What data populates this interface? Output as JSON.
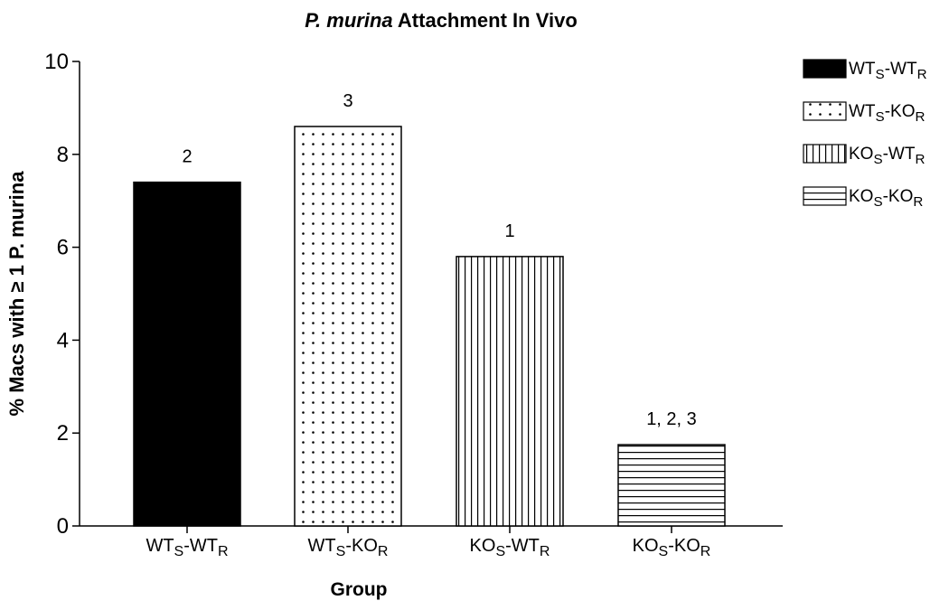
{
  "chart_data": {
    "type": "bar",
    "title": {
      "species": "P. murina",
      "rest": " Attachment In Vivo"
    },
    "ylabel": "% Macs with ≥ 1 P. murina",
    "xlabel": "Group",
    "ylim": [
      0,
      10
    ],
    "yticks": [
      0,
      2,
      4,
      6,
      8,
      10
    ],
    "grid": false,
    "legend_position": "right",
    "categories": [
      {
        "parts": [
          [
            "WT",
            ""
          ],
          [
            "S",
            "sub"
          ],
          [
            "-WT",
            ""
          ],
          [
            "R",
            "sub"
          ]
        ]
      },
      {
        "parts": [
          [
            "WT",
            ""
          ],
          [
            "S",
            "sub"
          ],
          [
            "-KO",
            ""
          ],
          [
            "R",
            "sub"
          ]
        ]
      },
      {
        "parts": [
          [
            "KO",
            ""
          ],
          [
            "S",
            "sub"
          ],
          [
            "-WT",
            ""
          ],
          [
            "R",
            "sub"
          ]
        ]
      },
      {
        "parts": [
          [
            "KO",
            ""
          ],
          [
            "S",
            "sub"
          ],
          [
            "-KO",
            ""
          ],
          [
            "R",
            "sub"
          ]
        ]
      }
    ],
    "values": [
      7.4,
      8.6,
      5.8,
      1.75
    ],
    "annotations": [
      "2",
      "3",
      "1",
      "1, 2, 3"
    ],
    "patterns": [
      "solid-black",
      "dots",
      "vertical-lines",
      "horizontal-lines"
    ]
  }
}
